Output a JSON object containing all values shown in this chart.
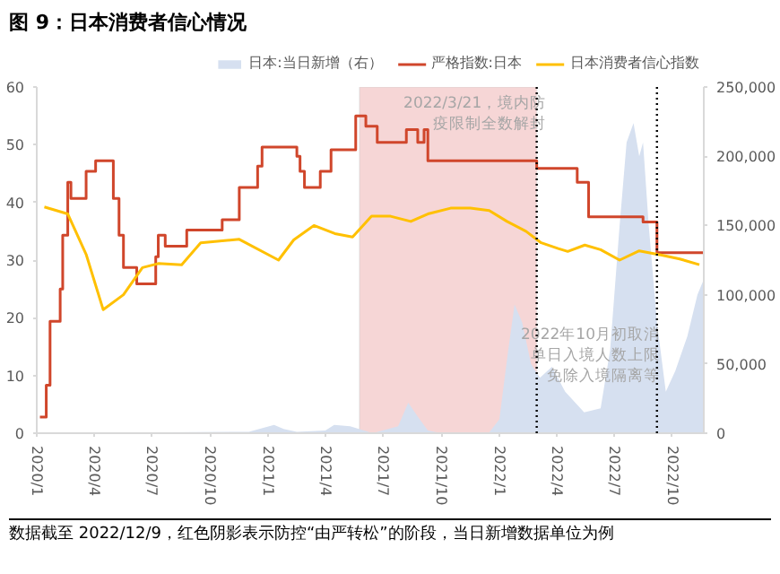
{
  "chart_data": {
    "type": "line",
    "title": "图 9：日本消费者信心情况",
    "xlim": [
      "2020-01-01",
      "2022-11-20"
    ],
    "xticks": [
      {
        "value": "2020-01-01",
        "label": "2020/1"
      },
      {
        "value": "2020-04-01",
        "label": "2020/4"
      },
      {
        "value": "2020-07-01",
        "label": "2020/7"
      },
      {
        "value": "2020-10-01",
        "label": "2020/10"
      },
      {
        "value": "2021-01-01",
        "label": "2021/1"
      },
      {
        "value": "2021-04-01",
        "label": "2021/4"
      },
      {
        "value": "2021-07-01",
        "label": "2021/7"
      },
      {
        "value": "2021-10-01",
        "label": "2021/10"
      },
      {
        "value": "2022-01-01",
        "label": "2022/1"
      },
      {
        "value": "2022-04-01",
        "label": "2022/4"
      },
      {
        "value": "2022-07-01",
        "label": "2022/7"
      },
      {
        "value": "2022-10-01",
        "label": "2022/10"
      }
    ],
    "ylim": [
      0,
      60
    ],
    "yticks": [
      0,
      10,
      20,
      30,
      40,
      50,
      60
    ],
    "y2lim": [
      0,
      250000
    ],
    "y2ticks": [
      0,
      {
        "value": 50000,
        "label": "50,000"
      },
      {
        "value": 100000,
        "label": "100,000"
      },
      {
        "value": 150000,
        "label": "150,000"
      },
      {
        "value": 200000,
        "label": "200,000"
      },
      {
        "value": 250000,
        "label": "250,000"
      }
    ],
    "grid": false,
    "legend": "top",
    "series": [
      {
        "name": "日本:当日新增（右）",
        "type": "area",
        "axis": "y2",
        "color": "#d6e0f0",
        "x": [
          "2020-01-01",
          "2020-12-01",
          "2021-01-10",
          "2021-01-25",
          "2021-02-15",
          "2021-04-01",
          "2021-04-15",
          "2021-05-10",
          "2021-06-15",
          "2021-07-25",
          "2021-08-10",
          "2021-08-25",
          "2021-09-10",
          "2021-10-01",
          "2021-12-15",
          "2022-01-01",
          "2022-01-15",
          "2022-01-25",
          "2022-02-06",
          "2022-02-20",
          "2022-03-06",
          "2022-03-25",
          "2022-04-15",
          "2022-05-15",
          "2022-06-10",
          "2022-06-25",
          "2022-07-10",
          "2022-07-21",
          "2022-08-01",
          "2022-08-10",
          "2022-08-16",
          "2022-08-25",
          "2022-09-07",
          "2022-09-21",
          "2022-10-06",
          "2022-10-25",
          "2022-11-10",
          "2022-11-19"
        ],
        "values": [
          0,
          1000,
          6000,
          3000,
          1000,
          2000,
          6000,
          5000,
          0,
          5000,
          22000,
          12000,
          2000,
          0,
          0,
          10000,
          60000,
          93000,
          80000,
          50000,
          40000,
          48000,
          30000,
          15000,
          18000,
          60000,
          150000,
          210000,
          224000,
          200000,
          210000,
          150000,
          80000,
          30000,
          45000,
          70000,
          100000,
          110000
        ]
      },
      {
        "name": "严格指数:日本",
        "type": "step",
        "color": "#d0462b",
        "x": [
          "2020-01-06",
          "2020-01-16",
          "2020-01-22",
          "2020-02-07",
          "2020-02-11",
          "2020-02-19",
          "2020-02-24",
          "2020-03-19",
          "2020-04-03",
          "2020-05-01",
          "2020-05-10",
          "2020-05-17",
          "2020-06-07",
          "2020-07-07",
          "2020-07-11",
          "2020-07-22",
          "2020-08-25",
          "2020-10-20",
          "2020-11-16",
          "2020-12-15",
          "2020-12-22",
          "2021-02-15",
          "2021-02-20",
          "2021-02-27",
          "2021-03-24",
          "2021-04-10",
          "2021-05-19",
          "2021-06-04",
          "2021-06-22",
          "2021-08-07",
          "2021-08-25",
          "2021-09-04",
          "2021-09-10",
          "2022-03-01",
          "2022-05-04",
          "2022-05-22",
          "2022-08-16",
          "2022-09-07",
          "2022-11-19"
        ],
        "values": [
          2.8,
          8.3,
          19.4,
          25,
          34.3,
          43.5,
          40.7,
          45.4,
          47.2,
          40.7,
          34.3,
          28.7,
          25.9,
          30.6,
          34.3,
          32.4,
          35.2,
          37,
          42.6,
          46.3,
          49.6,
          48,
          45.4,
          42.6,
          45.4,
          49.1,
          55,
          53.2,
          50.4,
          52.6,
          50.4,
          52.6,
          47.2,
          45.9,
          43.5,
          37.5,
          36.6,
          31.3,
          31.3
        ]
      },
      {
        "name": "日本消费者信心指数",
        "type": "line",
        "color": "#ffc000",
        "x": [
          "2020-01-13",
          "2020-02-19",
          "2020-03-19",
          "2020-04-15",
          "2020-05-17",
          "2020-06-16",
          "2020-07-11",
          "2020-08-17",
          "2020-09-16",
          "2020-11-16",
          "2021-01-17",
          "2021-02-10",
          "2021-03-14",
          "2021-04-16",
          "2021-05-14",
          "2021-06-13",
          "2021-07-13",
          "2021-08-14",
          "2021-09-10",
          "2021-10-16",
          "2021-11-16",
          "2021-12-16",
          "2022-01-13",
          "2022-02-12",
          "2022-03-08",
          "2022-04-04",
          "2022-04-19",
          "2022-05-16",
          "2022-06-10",
          "2022-07-10",
          "2022-08-10",
          "2022-09-13",
          "2022-10-13",
          "2022-11-13"
        ],
        "values": [
          39.2,
          38,
          31,
          21.4,
          24,
          28.7,
          29.4,
          29.2,
          33,
          33.6,
          30,
          33.5,
          36,
          34.6,
          34,
          37.6,
          37.6,
          36.7,
          38,
          39,
          39,
          38.6,
          36.7,
          35,
          33,
          32,
          31.5,
          32.6,
          31.8,
          30,
          31.6,
          30.9,
          30.2,
          29.2
        ]
      }
    ],
    "bands": [
      {
        "axis": "x",
        "from": "2021-05-25",
        "to": "2022-03-01",
        "color": "#f2c4c4"
      }
    ],
    "ref_lines": [
      {
        "axis": "x",
        "value": "2022-03-01",
        "line_style": "dotted",
        "color": "#000000",
        "label": "2022/3/21，境内防疫限制全数解封"
      },
      {
        "axis": "x",
        "value": "2022-09-07",
        "line_style": "dotted",
        "color": "#000000",
        "label": "2022年10月初取消单日入境人数上限免除入境隔离等"
      }
    ],
    "annotations": [
      "数据截至 2022/12/9，红色阴影表示防控“由严转松”的阶段，当日新增数据单位为例"
    ]
  }
}
